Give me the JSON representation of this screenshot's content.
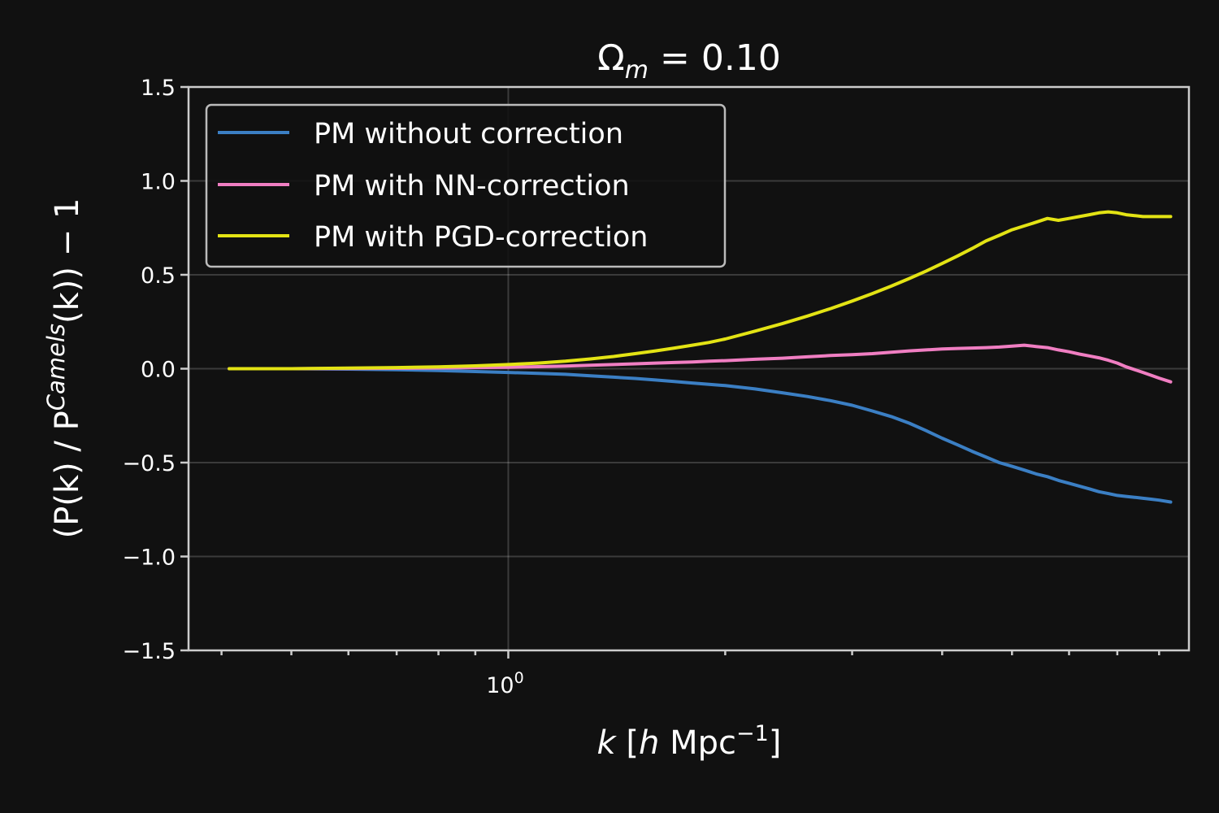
{
  "chart_data": {
    "type": "line",
    "title_main": "Ω",
    "title_sub": "m",
    "title_rest": " = 0.10",
    "xlabel_k": "k",
    "xlabel_open": " [",
    "xlabel_h": "h",
    "xlabel_mpc": " Mpc",
    "xlabel_exp": "−1",
    "xlabel_close": "]",
    "ylabel_a": "(P(k) / P",
    "ylabel_sup": "Camels",
    "ylabel_b": "(k)) − 1",
    "xscale": "log",
    "xlim": [
      0.36,
      8.8
    ],
    "ylim": [
      -1.5,
      1.5
    ],
    "x_major_tick_label": "10",
    "x_major_tick_exp": "0",
    "y_ticks": [
      "−1.5",
      "−1.0",
      "−0.5",
      "0.0",
      "0.5",
      "1.0",
      "1.5"
    ],
    "y_tick_values": [
      -1.5,
      -1.0,
      -0.5,
      0.0,
      0.5,
      1.0,
      1.5
    ],
    "grid": true,
    "legend_position": "upper-left",
    "x": [
      0.41,
      0.5,
      0.6,
      0.7,
      0.8,
      0.9,
      1.0,
      1.1,
      1.2,
      1.3,
      1.4,
      1.5,
      1.6,
      1.7,
      1.8,
      1.9,
      2.0,
      2.2,
      2.4,
      2.6,
      2.8,
      3.0,
      3.2,
      3.4,
      3.6,
      3.8,
      4.0,
      4.2,
      4.4,
      4.6,
      4.8,
      5.0,
      5.2,
      5.4,
      5.6,
      5.8,
      6.0,
      6.2,
      6.4,
      6.6,
      6.8,
      7.0,
      7.2,
      7.4,
      7.6,
      7.8,
      8.0,
      8.3
    ],
    "series": [
      {
        "name": "PM without correction",
        "color": "#3b7fc4",
        "values": [
          0.0,
          0.0,
          -0.002,
          -0.005,
          -0.01,
          -0.015,
          -0.02,
          -0.025,
          -0.03,
          -0.038,
          -0.045,
          -0.052,
          -0.06,
          -0.068,
          -0.076,
          -0.083,
          -0.09,
          -0.108,
          -0.128,
          -0.148,
          -0.17,
          -0.195,
          -0.225,
          -0.255,
          -0.29,
          -0.33,
          -0.37,
          -0.405,
          -0.44,
          -0.47,
          -0.5,
          -0.52,
          -0.54,
          -0.56,
          -0.575,
          -0.595,
          -0.61,
          -0.625,
          -0.64,
          -0.655,
          -0.665,
          -0.675,
          -0.68,
          -0.685,
          -0.69,
          -0.695,
          -0.7,
          -0.71
        ]
      },
      {
        "name": "PM with NN-correction",
        "color": "#f07ec2",
        "values": [
          0.0,
          0.0,
          0.001,
          0.002,
          0.004,
          0.006,
          0.008,
          0.011,
          0.014,
          0.018,
          0.022,
          0.026,
          0.03,
          0.033,
          0.036,
          0.04,
          0.043,
          0.05,
          0.056,
          0.063,
          0.07,
          0.075,
          0.08,
          0.088,
          0.095,
          0.1,
          0.105,
          0.108,
          0.11,
          0.112,
          0.115,
          0.12,
          0.125,
          0.118,
          0.112,
          0.1,
          0.09,
          0.078,
          0.068,
          0.058,
          0.045,
          0.03,
          0.01,
          -0.005,
          -0.02,
          -0.035,
          -0.05,
          -0.07
        ]
      },
      {
        "name": "PM with PGD-correction",
        "color": "#e3e314",
        "values": [
          0.0,
          0.0,
          0.003,
          0.006,
          0.01,
          0.015,
          0.022,
          0.03,
          0.04,
          0.052,
          0.065,
          0.08,
          0.095,
          0.11,
          0.125,
          0.14,
          0.158,
          0.2,
          0.24,
          0.28,
          0.32,
          0.36,
          0.4,
          0.44,
          0.48,
          0.52,
          0.56,
          0.6,
          0.64,
          0.68,
          0.71,
          0.74,
          0.76,
          0.78,
          0.8,
          0.79,
          0.8,
          0.81,
          0.82,
          0.83,
          0.835,
          0.83,
          0.82,
          0.815,
          0.81,
          0.81,
          0.81,
          0.81
        ]
      }
    ]
  }
}
